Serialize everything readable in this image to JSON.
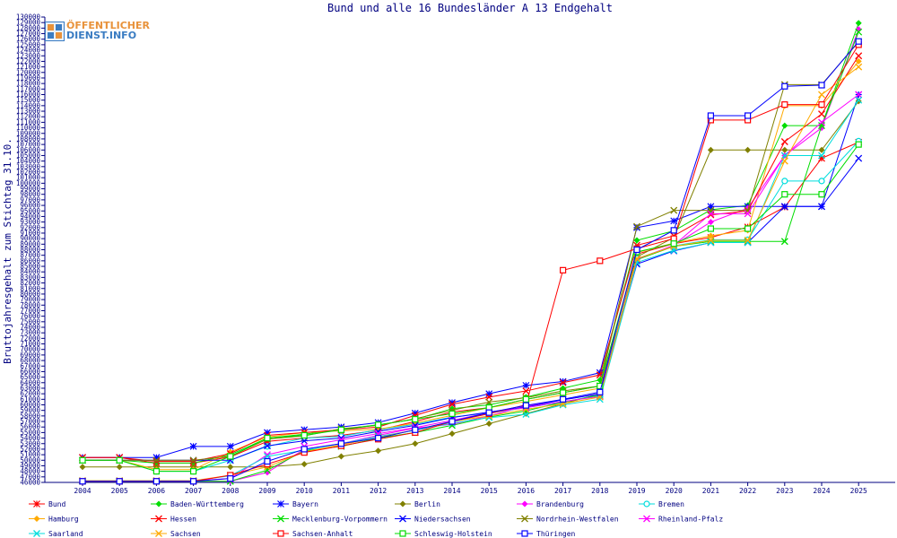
{
  "logo": {
    "line1": "ÖFFENTLICHER",
    "line2": "DIENST.INFO"
  },
  "chart_data": {
    "type": "line",
    "title": "Bund und alle 16 Bundesländer A 13 Endgehalt",
    "xlabel": "",
    "ylabel": "Bruttojahresgehalt zum Stichtag 31.10.",
    "ylim": [
      46000,
      130000
    ],
    "y_tick_step": 1000,
    "x": [
      "2004",
      "2005",
      "2006",
      "2007",
      "2008",
      "2009",
      "2010",
      "2011",
      "2012",
      "2013",
      "2014",
      "2015",
      "2016",
      "2017",
      "2018",
      "2019",
      "2020",
      "2021",
      "2022",
      "2023",
      "2024",
      "2025"
    ],
    "grid": false,
    "legend_position": "bottom",
    "series": [
      {
        "name": "Bund",
        "color": "#ff0000",
        "marker": "star",
        "values": [
          50500,
          50500,
          49500,
          49500,
          50600,
          53400,
          54000,
          54500,
          55400,
          57000,
          58700,
          59500,
          61000,
          62200,
          63400,
          87200,
          89100,
          90200,
          92100,
          95700,
          104500,
          107400
        ]
      },
      {
        "name": "Baden-Württemberg",
        "color": "#00dd00",
        "marker": "diamond",
        "values": [
          50000,
          50000,
          49500,
          49500,
          51000,
          54000,
          54700,
          55600,
          56400,
          57400,
          59300,
          60000,
          61400,
          63000,
          64500,
          89700,
          91400,
          95200,
          96000,
          110400,
          110400,
          128900
        ]
      },
      {
        "name": "Bayern",
        "color": "#0000ff",
        "marker": "star",
        "values": [
          50500,
          50500,
          50500,
          52500,
          52500,
          55000,
          55500,
          56000,
          56800,
          58500,
          60400,
          62000,
          63500,
          64200,
          65800,
          92000,
          93200,
          95800,
          95800,
          95800,
          95800,
          116000
        ]
      },
      {
        "name": "Berlin",
        "color": "#808000",
        "marker": "diamond",
        "values": [
          48800,
          48800,
          48800,
          48800,
          48800,
          48800,
          49300,
          50700,
          51700,
          53000,
          54800,
          56600,
          58400,
          60200,
          62000,
          86700,
          90200,
          106000,
          106000,
          106000,
          106000,
          114800
        ]
      },
      {
        "name": "Brandenburg",
        "color": "#ff00ff",
        "marker": "diamond",
        "values": [
          46200,
          46200,
          46200,
          46200,
          46200,
          47800,
          52000,
          53000,
          54500,
          55800,
          56500,
          58000,
          59800,
          60900,
          62000,
          86200,
          88800,
          93000,
          95500,
          105000,
          110000,
          127800
        ]
      },
      {
        "name": "Bremen",
        "color": "#00dddd",
        "marker": "circle",
        "values": [
          50000,
          50000,
          48000,
          48000,
          50000,
          52500,
          54000,
          54300,
          55500,
          56500,
          57800,
          58500,
          59500,
          60500,
          61800,
          86400,
          88700,
          89800,
          89800,
          100400,
          100400,
          107600
        ]
      },
      {
        "name": "Hamburg",
        "color": "#ffaa00",
        "marker": "diamond",
        "values": [
          50000,
          50000,
          48300,
          48300,
          51500,
          54200,
          55000,
          55300,
          55600,
          56700,
          58100,
          59500,
          60600,
          61800,
          63000,
          87500,
          89200,
          90500,
          91500,
          114000,
          114000,
          122000
        ]
      },
      {
        "name": "Hessen",
        "color": "#ff0000",
        "marker": "x",
        "values": [
          50500,
          50500,
          49800,
          49800,
          51200,
          54500,
          55000,
          55500,
          56000,
          58100,
          60100,
          61400,
          62500,
          64000,
          65400,
          88800,
          90500,
          94300,
          95000,
          107500,
          112500,
          123000
        ]
      },
      {
        "name": "Mecklenburg-Vorpommern",
        "color": "#00dd00",
        "marker": "x",
        "values": [
          46200,
          46200,
          46200,
          46200,
          46200,
          48200,
          51700,
          52500,
          54000,
          55000,
          56300,
          57800,
          58900,
          60500,
          61700,
          86200,
          88600,
          89500,
          89500,
          89500,
          110400,
          127300
        ]
      },
      {
        "name": "Niedersachsen",
        "color": "#0000ff",
        "marker": "x",
        "values": [
          50000,
          50000,
          50000,
          50000,
          50000,
          52600,
          53500,
          54000,
          55200,
          56300,
          57700,
          58700,
          59600,
          60900,
          62000,
          85400,
          87800,
          89300,
          89300,
          95800,
          95800,
          104500
        ]
      },
      {
        "name": "Nordrhein-Westfalen",
        "color": "#808000",
        "marker": "x",
        "values": [
          50000,
          50000,
          50000,
          50000,
          50700,
          53800,
          54400,
          55700,
          56300,
          57500,
          59000,
          60500,
          61300,
          62500,
          63400,
          92200,
          95100,
          95100,
          95100,
          117800,
          117800,
          125500
        ]
      },
      {
        "name": "Rheinland-Pfalz",
        "color": "#ff00ff",
        "marker": "x",
        "values": [
          46300,
          46300,
          46300,
          46300,
          46700,
          51000,
          52500,
          53700,
          54800,
          55900,
          57200,
          58600,
          59500,
          60600,
          61500,
          86300,
          88800,
          94500,
          94500,
          105000,
          111000,
          116000
        ]
      },
      {
        "name": "Saarland",
        "color": "#00dddd",
        "marker": "x",
        "values": [
          46300,
          46300,
          46300,
          46300,
          47200,
          50700,
          51800,
          53000,
          54300,
          55400,
          56700,
          57700,
          58300,
          60000,
          61000,
          85700,
          87900,
          89300,
          89300,
          105000,
          105000,
          115000
        ]
      },
      {
        "name": "Sachsen",
        "color": "#ffaa00",
        "marker": "x",
        "values": [
          46300,
          46300,
          46300,
          46300,
          47300,
          48800,
          51500,
          52800,
          54100,
          55500,
          57000,
          58000,
          59200,
          60200,
          61400,
          86400,
          88600,
          89700,
          89700,
          104000,
          116000,
          121000
        ]
      },
      {
        "name": "Sachsen-Anhalt",
        "color": "#ff0000",
        "marker": "square",
        "values": [
          46200,
          46200,
          46200,
          46200,
          47300,
          49300,
          51400,
          52600,
          53800,
          55000,
          57000,
          58400,
          60000,
          84300,
          86000,
          88200,
          90000,
          111400,
          111400,
          114200,
          114200,
          125000
        ]
      },
      {
        "name": "Schleswig-Holstein",
        "color": "#00dd00",
        "marker": "square",
        "values": [
          50000,
          50000,
          48000,
          48000,
          50700,
          54000,
          54500,
          55500,
          56400,
          57400,
          58400,
          59500,
          61000,
          62200,
          63400,
          87600,
          89100,
          91800,
          91800,
          98000,
          98000,
          107000
        ]
      },
      {
        "name": "Thüringen",
        "color": "#0000ff",
        "marker": "square",
        "values": [
          46200,
          46200,
          46200,
          46200,
          46700,
          49800,
          52000,
          53000,
          54000,
          55500,
          57000,
          58600,
          59900,
          61000,
          62300,
          88000,
          91500,
          112200,
          112200,
          117500,
          117700,
          125600
        ]
      }
    ]
  }
}
